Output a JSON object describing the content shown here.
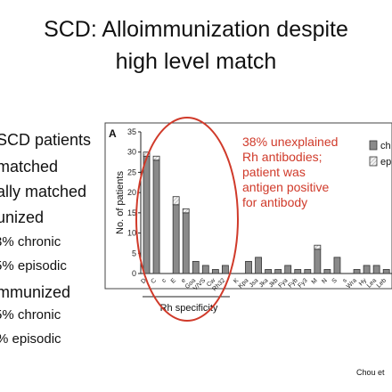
{
  "slide": {
    "title_line1": "SCD:  Alloimmunization despite",
    "title_line2": "high level match",
    "bullets": [
      {
        "text": "SCD patients",
        "style": "main"
      },
      {
        "text": " matched",
        "style": "main"
      },
      {
        "text": "ally matched",
        "style": "main"
      },
      {
        "text": "unized",
        "style": "main"
      },
      {
        "text": "3% chronic",
        "style": "sub"
      },
      {
        "text": "5% episodic",
        "style": "sub"
      },
      {
        "text": "mmunized",
        "style": "main"
      },
      {
        "text": "5% chronic",
        "style": "sub"
      },
      {
        "text": "% episodic",
        "style": "sub"
      }
    ],
    "annotation_lines": [
      "38% unexplained",
      "Rh antibodies;",
      "patient was",
      "antigen positive",
      "for antibody"
    ],
    "credit": "Chou et"
  },
  "colors": {
    "chronic": "#8a8a8a",
    "episodic": "#e8e8e8",
    "annotation": "#d03a2a"
  },
  "chart_data": {
    "type": "bar",
    "panel_label": "A",
    "ylabel": "No. of patients",
    "xlabel": "Rh specificity",
    "ylim": [
      0,
      35
    ],
    "yticks": [
      0,
      5,
      10,
      15,
      20,
      25,
      30,
      35
    ],
    "stacked": true,
    "categories": [
      "D",
      "C",
      "c",
      "E",
      "e",
      "Goa",
      "V/VS",
      "Cw",
      "Rh32",
      "K",
      "Kpa",
      "Jsa",
      "Jka",
      "Jkb",
      "Fya",
      "Fyb",
      "Fy3",
      "M",
      "N",
      "S",
      "s",
      "Wra",
      "Hy",
      "Lea",
      "Leb"
    ],
    "series": [
      {
        "name": "chronic",
        "values": [
          29,
          28,
          0,
          17,
          15,
          3,
          2,
          1,
          2,
          0,
          3,
          4,
          1,
          1,
          2,
          1,
          1,
          6,
          1,
          4,
          0,
          1,
          2,
          2,
          1
        ]
      },
      {
        "name": "episodic",
        "values": [
          1,
          1,
          0,
          2,
          1,
          0,
          0,
          0,
          0,
          0,
          0,
          0,
          0,
          0,
          0,
          0,
          0,
          1,
          0,
          0,
          0,
          0,
          0,
          0,
          0
        ]
      }
    ],
    "legend": {
      "position": "top-right",
      "labels": [
        "ch",
        "ep"
      ]
    }
  }
}
